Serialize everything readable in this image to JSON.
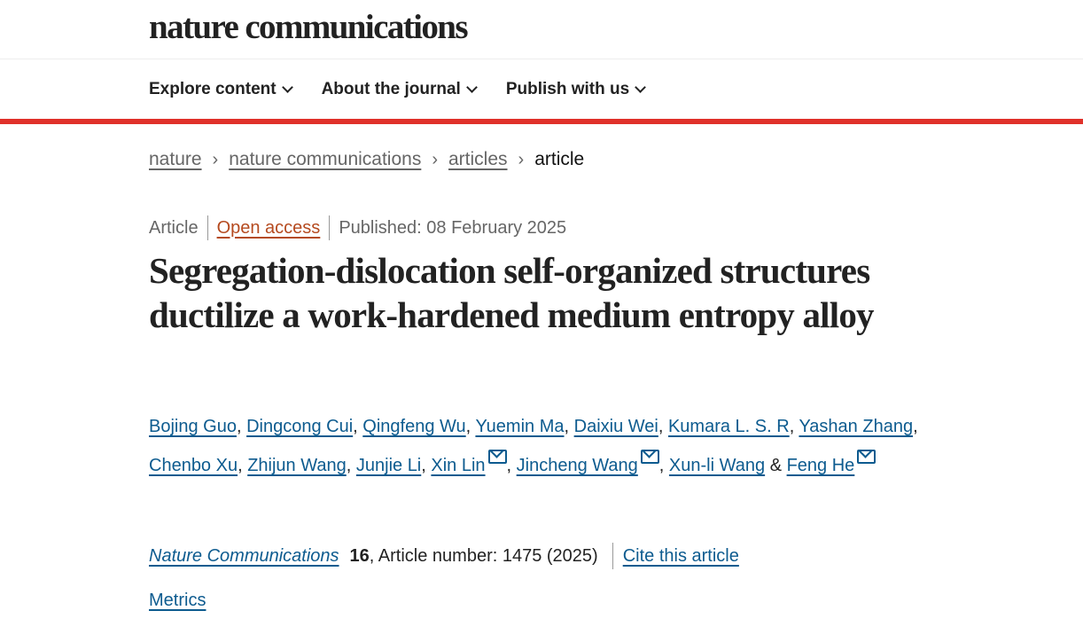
{
  "header": {
    "logo": "nature communications"
  },
  "nav": {
    "items": [
      {
        "label": "Explore content"
      },
      {
        "label": "About the journal"
      },
      {
        "label": "Publish with us"
      }
    ]
  },
  "breadcrumb": {
    "items": [
      "nature",
      "nature communications",
      "articles"
    ],
    "current": "article",
    "separator": "›"
  },
  "meta": {
    "type": "Article",
    "access": "Open access",
    "published": "Published: 08 February 2025"
  },
  "title": "Segregation-dislocation self-organized structures ductilize a work-hardened medium entropy alloy",
  "authors": [
    {
      "name": "Bojing Guo",
      "email": false
    },
    {
      "name": "Dingcong Cui",
      "email": false
    },
    {
      "name": "Qingfeng Wu",
      "email": false
    },
    {
      "name": "Yuemin Ma",
      "email": false
    },
    {
      "name": "Daixiu Wei",
      "email": false
    },
    {
      "name": "Kumara L. S. R",
      "email": false
    },
    {
      "name": "Yashan Zhang",
      "email": false
    },
    {
      "name": "Chenbo Xu",
      "email": false
    },
    {
      "name": "Zhijun Wang",
      "email": false
    },
    {
      "name": "Junjie Li",
      "email": false
    },
    {
      "name": "Xin Lin",
      "email": true
    },
    {
      "name": "Jincheng Wang",
      "email": true
    },
    {
      "name": "Xun-li Wang",
      "email": false
    },
    {
      "name": "Feng He",
      "email": true
    }
  ],
  "authors_joiner": "&",
  "citation": {
    "journal": "Nature Communications",
    "volume": "16",
    "rest": ", Article number: 1475 (2025)",
    "cite_link": "Cite this article"
  },
  "metrics": "Metrics",
  "colors": {
    "accent_bar": "#e0312a",
    "link": "#0d5b8f",
    "open_access": "#b54a1f"
  }
}
